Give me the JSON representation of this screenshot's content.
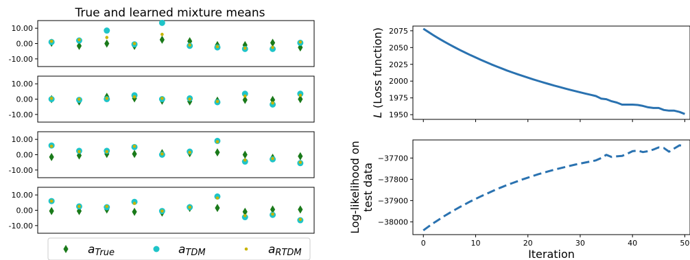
{
  "chart_data": [
    {
      "type": "scatter",
      "title": "True and learned mixture means",
      "x": [
        1,
        2,
        3,
        4,
        5,
        6,
        7,
        8,
        9,
        10
      ],
      "ylim": [
        -15,
        15
      ],
      "y_ticks": [
        "10.00",
        "0.00",
        "-10.00"
      ],
      "grid": false,
      "legend_placement": "bottom",
      "legend": [
        {
          "key": "true",
          "name": "a",
          "sub": "True",
          "marker": "diamond",
          "color": "#1a7a1a"
        },
        {
          "key": "tdm",
          "name": "a",
          "sub": "TDM",
          "marker": "circle",
          "color": "#1fc4c8"
        },
        {
          "key": "rtdm",
          "name": "a",
          "sub": "RTDM",
          "marker": "dot",
          "color": "#c8b400"
        }
      ],
      "panels": [
        {
          "true": [
            0.5,
            -1.5,
            0.0,
            -1.5,
            2.5,
            1.5,
            -1.0,
            -1.0,
            0.5,
            -2.5
          ],
          "tdm": [
            1.0,
            2.0,
            8.5,
            -0.5,
            13.5,
            -1.5,
            -2.5,
            -3.5,
            -3.5,
            0.5
          ],
          "rtdm": [
            1.5,
            2.5,
            4.0,
            0.0,
            6.0,
            -1.0,
            -2.0,
            -3.0,
            -2.5,
            1.0
          ]
        },
        {
          "true": [
            0.0,
            -1.5,
            1.5,
            0.5,
            -1.0,
            -1.5,
            -1.0,
            -0.5,
            -0.5,
            0.0
          ],
          "tdm": [
            0.0,
            -0.5,
            0.0,
            2.5,
            0.0,
            0.5,
            -2.0,
            3.5,
            -3.5,
            3.5
          ],
          "rtdm": [
            0.5,
            0.0,
            0.5,
            1.5,
            0.5,
            0.0,
            -1.5,
            2.0,
            -2.5,
            2.5
          ]
        },
        {
          "true": [
            -1.5,
            -0.5,
            0.5,
            0.5,
            1.0,
            1.0,
            1.5,
            0.0,
            -2.0,
            -1.0
          ],
          "tdm": [
            6.0,
            2.5,
            2.5,
            5.0,
            0.0,
            2.0,
            9.0,
            -4.5,
            -3.0,
            -5.5
          ],
          "rtdm": [
            5.5,
            2.0,
            2.0,
            5.5,
            0.5,
            1.5,
            8.5,
            -3.5,
            -2.5,
            -5.0
          ]
        },
        {
          "true": [
            -0.5,
            -0.5,
            0.5,
            -1.0,
            -1.5,
            1.5,
            1.5,
            -1.0,
            0.5,
            0.5
          ],
          "tdm": [
            6.0,
            2.5,
            2.0,
            5.5,
            -0.5,
            2.0,
            9.0,
            -4.5,
            -3.0,
            -6.5
          ],
          "rtdm": [
            6.0,
            2.5,
            2.5,
            4.5,
            -0.5,
            2.0,
            8.0,
            -3.5,
            -2.5,
            -6.0
          ]
        }
      ]
    },
    {
      "type": "line",
      "ylabel_prefix": "L",
      "ylabel": " (Loss function)",
      "xlim": [
        -2,
        51
      ],
      "ylim": [
        1943,
        2082
      ],
      "y_ticks": [
        2075,
        2050,
        2025,
        2000,
        1975,
        1950
      ],
      "x": [
        0,
        1,
        2,
        3,
        4,
        5,
        6,
        7,
        8,
        9,
        10,
        11,
        12,
        13,
        14,
        15,
        16,
        17,
        18,
        19,
        20,
        21,
        22,
        23,
        24,
        25,
        26,
        27,
        28,
        29,
        30,
        31,
        32,
        33,
        34,
        35,
        36,
        37,
        38,
        39,
        40,
        41,
        42,
        43,
        44,
        45,
        46,
        47,
        48,
        49,
        50
      ],
      "values": [
        2078,
        2073,
        2068,
        2063.3,
        2058.8,
        2054.5,
        2050.3,
        2046.3,
        2042.5,
        2038.8,
        2035.2,
        2031.7,
        2028.3,
        2025,
        2021.8,
        2018.8,
        2015.8,
        2013,
        2010.3,
        2007.7,
        2005.1,
        2002.6,
        2000.2,
        1997.9,
        1995.6,
        1993.4,
        1991.3,
        1989.2,
        1987.2,
        1985.2,
        1983.3,
        1981.4,
        1979.6,
        1977.8,
        1974,
        1973,
        1970,
        1968,
        1965,
        1965,
        1965,
        1964.5,
        1963,
        1961,
        1960,
        1960,
        1957,
        1956,
        1956,
        1954,
        1951
      ],
      "style": "solid",
      "color": "#2a72b0"
    },
    {
      "type": "line",
      "xlabel": "Iteration",
      "ylabel": [
        "Log-likelihood on",
        "test data"
      ],
      "xlim": [
        -2,
        51
      ],
      "ylim": [
        -38060,
        -37615
      ],
      "x_ticks": [
        0,
        10,
        20,
        30,
        40,
        50
      ],
      "y_ticks": [
        -37700,
        -37800,
        -37900,
        -38000
      ],
      "x": [
        0,
        1,
        2,
        3,
        4,
        5,
        6,
        7,
        8,
        9,
        10,
        11,
        12,
        13,
        14,
        15,
        16,
        17,
        18,
        19,
        20,
        21,
        22,
        23,
        24,
        25,
        26,
        27,
        28,
        29,
        30,
        31,
        32,
        33,
        34,
        35,
        36,
        37,
        38,
        39,
        40,
        41,
        42,
        43,
        44,
        45,
        46,
        47,
        48,
        49,
        50
      ],
      "values": [
        -38040,
        -38022,
        -38005,
        -37989,
        -37973,
        -37958,
        -37944,
        -37930,
        -37917,
        -37904,
        -37892,
        -37880,
        -37869,
        -37858,
        -37847,
        -37837,
        -37827,
        -37818,
        -37809,
        -37800,
        -37792,
        -37784,
        -37776,
        -37769,
        -37762,
        -37755,
        -37749,
        -37743,
        -37737,
        -37731,
        -37726,
        -37721,
        -37716,
        -37711,
        -37700,
        -37685,
        -37695,
        -37692,
        -37690,
        -37680,
        -37668,
        -37665,
        -37672,
        -37668,
        -37660,
        -37650,
        -37653,
        -37670,
        -37655,
        -37640,
        -37645
      ],
      "style": "dashed",
      "color": "#2a72b0"
    }
  ]
}
